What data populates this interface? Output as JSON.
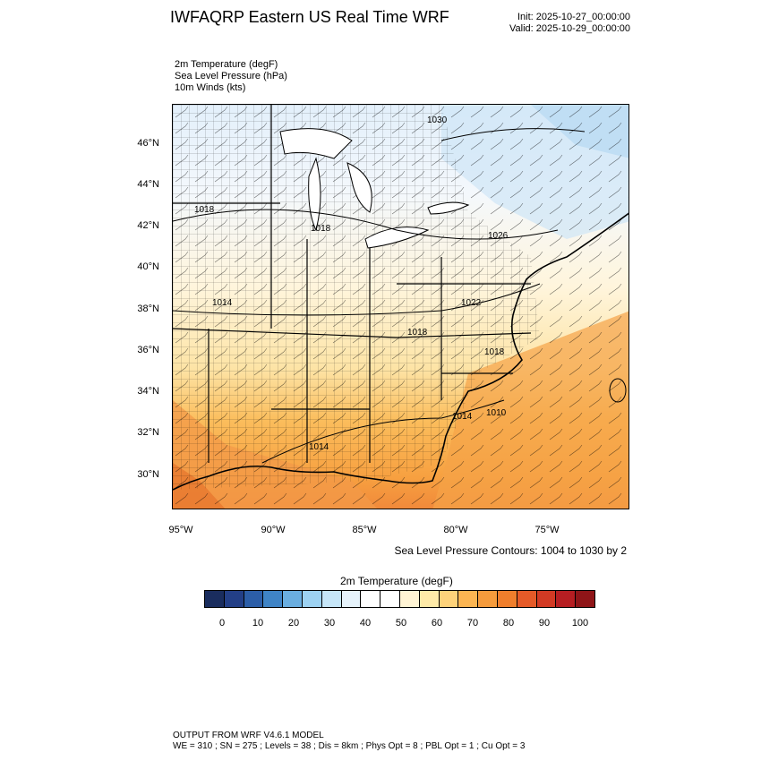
{
  "header": {
    "title": "IWFAQRP Eastern US Real Time WRF",
    "init": "Init: 2025-10-27_00:00:00",
    "valid": "Valid: 2025-10-29_00:00:00"
  },
  "fields": {
    "temp": "2m Temperature   (degF)",
    "slp": "Sea Level Pressure   (hPa)",
    "winds": "10m Winds   (kts)"
  },
  "axes": {
    "lat_labels": [
      "46°N",
      "44°N",
      "42°N",
      "40°N",
      "38°N",
      "36°N",
      "34°N",
      "32°N",
      "30°N"
    ],
    "lon_labels": [
      "95°W",
      "90°W",
      "85°W",
      "80°W",
      "75°W"
    ]
  },
  "isobar_labels": [
    "1030",
    "1018",
    "1018",
    "1026",
    "1014",
    "1022",
    "1018",
    "1018",
    "1014",
    "1010",
    "1014"
  ],
  "slp_note": "Sea Level Pressure Contours: 1004 to 1030 by 2",
  "colorbar": {
    "title": "2m Temperature  (degF)",
    "labels": [
      "0",
      "10",
      "20",
      "30",
      "40",
      "50",
      "60",
      "70",
      "80",
      "90",
      "100"
    ],
    "colors": [
      "#1a2d5e",
      "#233f87",
      "#2c5ea8",
      "#3f84c6",
      "#6aaee0",
      "#9dd2f2",
      "#c6e6f8",
      "#e6f3fb",
      "#ffffff",
      "#ffffff",
      "#fff4d4",
      "#feeaa8",
      "#fdd27a",
      "#fbb552",
      "#f59b3c",
      "#ef7e2c",
      "#e55a28",
      "#d23a24",
      "#b61e22",
      "#8f1518"
    ]
  },
  "footer": {
    "line1": "OUTPUT FROM WRF V4.6.1 MODEL",
    "line2": "WE = 310 ; SN = 275 ; Levels = 38 ; Dis = 8km ; Phys Opt = 8 ; PBL Opt = 1 ; Cu Opt = 3"
  }
}
